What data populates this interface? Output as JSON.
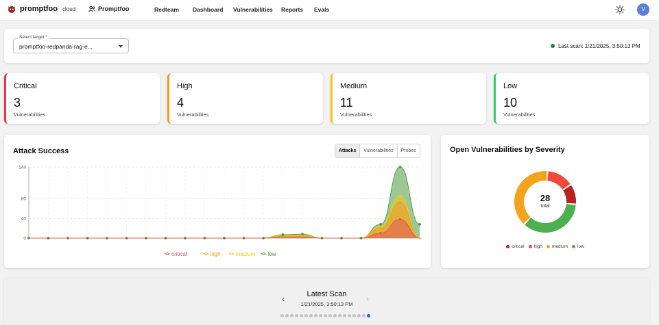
{
  "nav": {
    "brand": "promptfoo",
    "brand_sub": "cloud",
    "org": "Promptfoo",
    "items": [
      "Redteam",
      "Dashboard",
      "Vulnerabilities",
      "Reports",
      "Evals"
    ],
    "avatar": "V"
  },
  "target": {
    "label": "Select target *",
    "value": "promptfoo-redpanda-rag-e...",
    "last_scan": "Last scan: 1/21/2025, 3:50:13 PM",
    "status_color": "#1a8c2a"
  },
  "severity_cards": [
    {
      "title": "Critical",
      "count": "3",
      "sub": "Vulnerabilities",
      "color": "#e8344e"
    },
    {
      "title": "High",
      "count": "4",
      "sub": "Vulnerabilities",
      "color": "#f59a23"
    },
    {
      "title": "Medium",
      "count": "11",
      "sub": "Vulnerabilities",
      "color": "#f2c81b"
    },
    {
      "title": "Low",
      "count": "10",
      "sub": "Vulnerabilities",
      "color": "#3ccb6a"
    }
  ],
  "attack_chart": {
    "title": "Attack Success",
    "tabs": [
      "Attacks",
      "Vulnerabilities",
      "Probes"
    ],
    "active_tab": "Attacks"
  },
  "chart_data": {
    "type": "area",
    "title": "Attack Success",
    "x_count": 20,
    "yticks": [
      0,
      40,
      80,
      144
    ],
    "ylim": [
      0,
      144
    ],
    "grid": true,
    "legend_position": "bottom",
    "series": [
      {
        "name": "critical",
        "color": "#e05a5a",
        "values": [
          0,
          0,
          0,
          0,
          0,
          0,
          0,
          0,
          0,
          0,
          0,
          0,
          0,
          2,
          2,
          0,
          0,
          0,
          10,
          38,
          0
        ]
      },
      {
        "name": "high",
        "color": "#f59a23",
        "values": [
          0,
          0,
          0,
          0,
          0,
          0,
          0,
          0,
          0,
          0,
          0,
          0,
          0,
          4,
          4,
          0,
          0,
          0,
          20,
          72,
          0
        ]
      },
      {
        "name": "medium",
        "color": "#f2c81b",
        "values": [
          0,
          0,
          0,
          0,
          0,
          0,
          0,
          0,
          0,
          0,
          0,
          0,
          0,
          6,
          6,
          0,
          0,
          0,
          24,
          85,
          0
        ]
      },
      {
        "name": "low",
        "color": "#4a9a3e",
        "values": [
          0,
          0,
          0,
          0,
          0,
          0,
          0,
          0,
          0,
          0,
          0,
          0,
          0,
          7,
          8,
          0,
          0,
          0,
          28,
          144,
          28
        ]
      }
    ]
  },
  "donut": {
    "title": "Open Vulnerabilities by Severity",
    "total": "28",
    "total_label": "total",
    "segments": [
      {
        "name": "critical",
        "value": 3,
        "color": "#b8211f"
      },
      {
        "name": "high",
        "value": 4,
        "color": "#ee4b3b"
      },
      {
        "name": "medium",
        "value": 11,
        "color": "#f5a31c"
      },
      {
        "name": "low",
        "value": 10,
        "color": "#4caf50"
      }
    ]
  },
  "latest_scan": {
    "title": "Latest Scan",
    "date": "1/21/2025, 3:50:13 PM",
    "page_count": 19,
    "active_page": 19
  }
}
